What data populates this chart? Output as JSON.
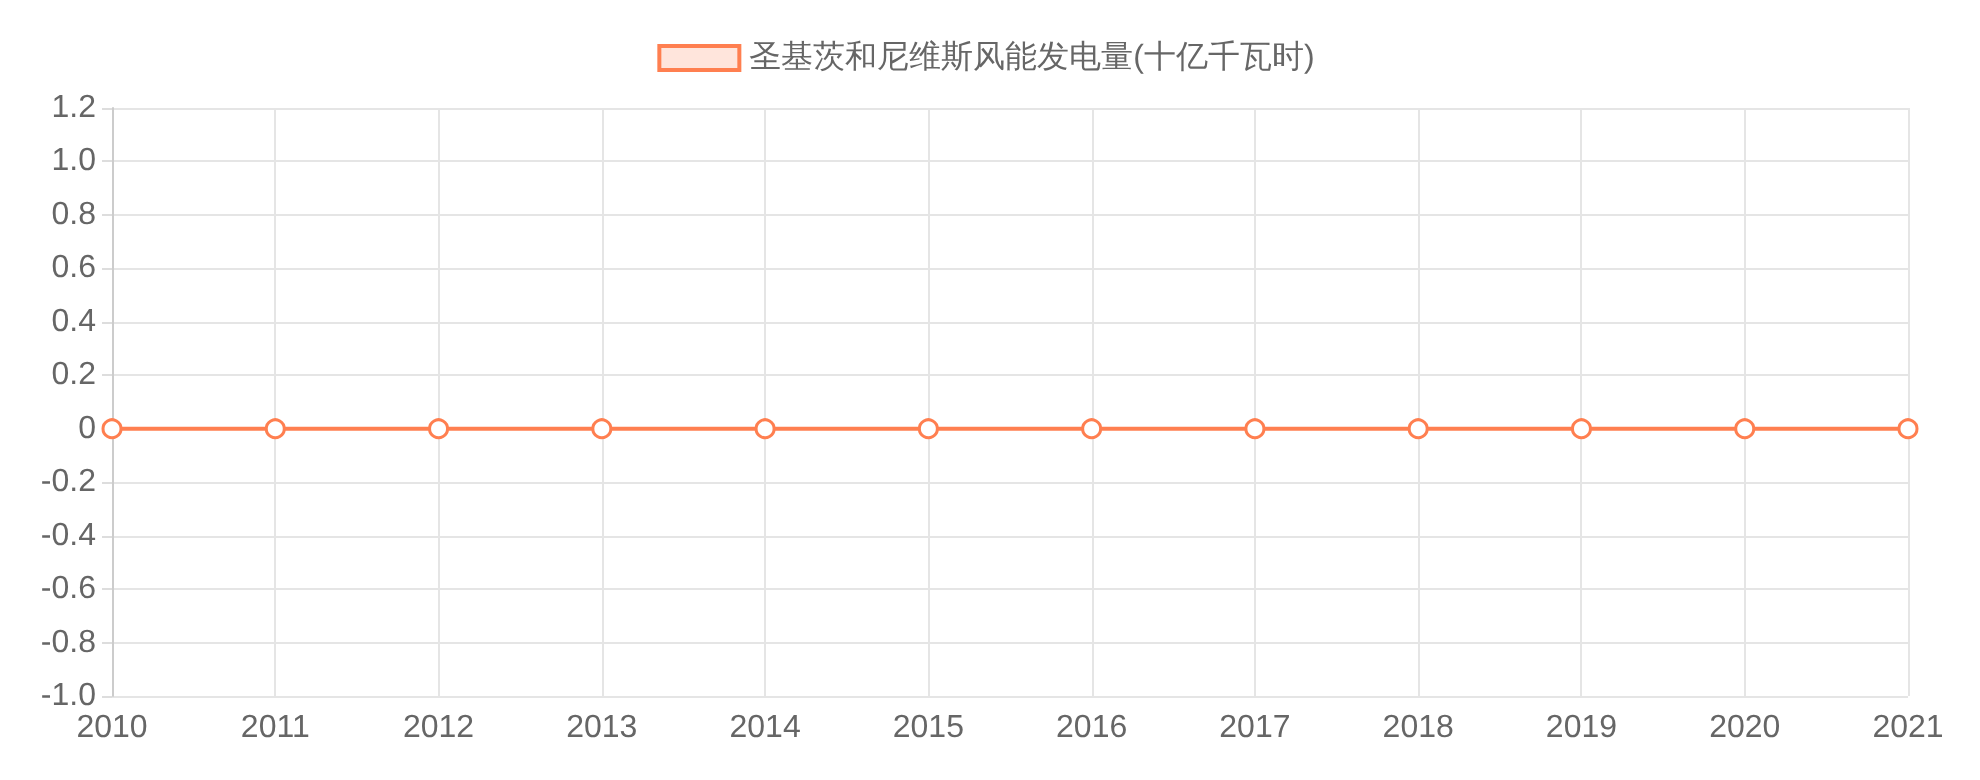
{
  "chart_data": {
    "type": "line",
    "categories": [
      "2010",
      "2011",
      "2012",
      "2013",
      "2014",
      "2015",
      "2016",
      "2017",
      "2018",
      "2019",
      "2020",
      "2021"
    ],
    "series": [
      {
        "name": "圣基茨和尼维斯风能发电量(十亿千瓦时)",
        "color": "#ff7f50",
        "values": [
          0,
          0,
          0,
          0,
          0,
          0,
          0,
          0,
          0,
          0,
          0,
          0
        ]
      }
    ],
    "ylim": [
      -1,
      1.2
    ],
    "yticks": [
      {
        "value": -1,
        "label": "-1.0"
      },
      -0.8,
      -0.6,
      -0.4,
      -0.2,
      0,
      0.2,
      0.4,
      0.6,
      0.8,
      {
        "value": 1,
        "label": "1.0"
      },
      1.2
    ],
    "grid": true,
    "legend": "top",
    "marker": "circle",
    "line_style": "solid"
  }
}
